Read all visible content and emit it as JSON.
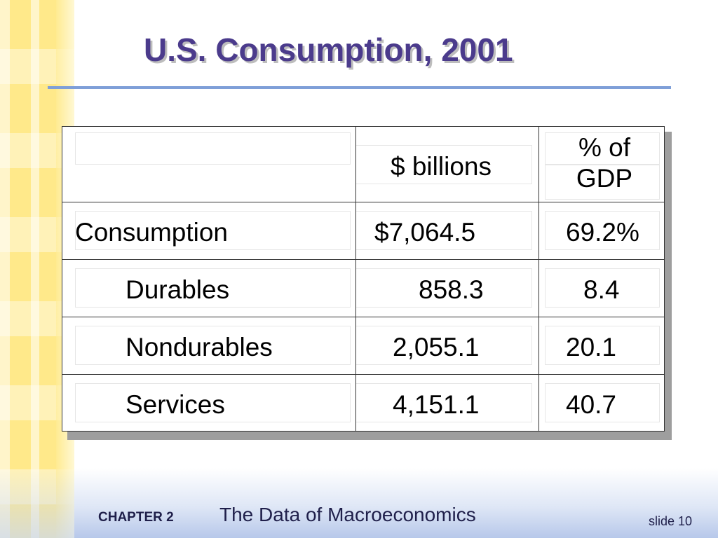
{
  "slide": {
    "title": "U.S. Consumption, 2001",
    "footer": {
      "chapter_label": "CHAPTER 2",
      "chapter_title": "The Data of Macroeconomics",
      "slide_label": "slide 10"
    }
  },
  "table": {
    "headers": [
      "",
      "$ billions",
      "% of GDP"
    ],
    "header_pct_lines": [
      "% of",
      "GDP"
    ],
    "rows": [
      {
        "label": "Consumption",
        "billions": "$7,064.5",
        "pct": "69.2%"
      },
      {
        "label": "Durables",
        "billions": "858.3",
        "pct": "8.4"
      },
      {
        "label": "Nondurables",
        "billions": "2,055.1",
        "pct": "20.1"
      },
      {
        "label": "Services",
        "billions": "4,151.1",
        "pct": "40.7"
      }
    ]
  },
  "colors": {
    "title": "#4b3b8c",
    "rule": "#7f9fd8",
    "footer_text": "#1f1f4a",
    "stripe": "#ffe98a"
  }
}
